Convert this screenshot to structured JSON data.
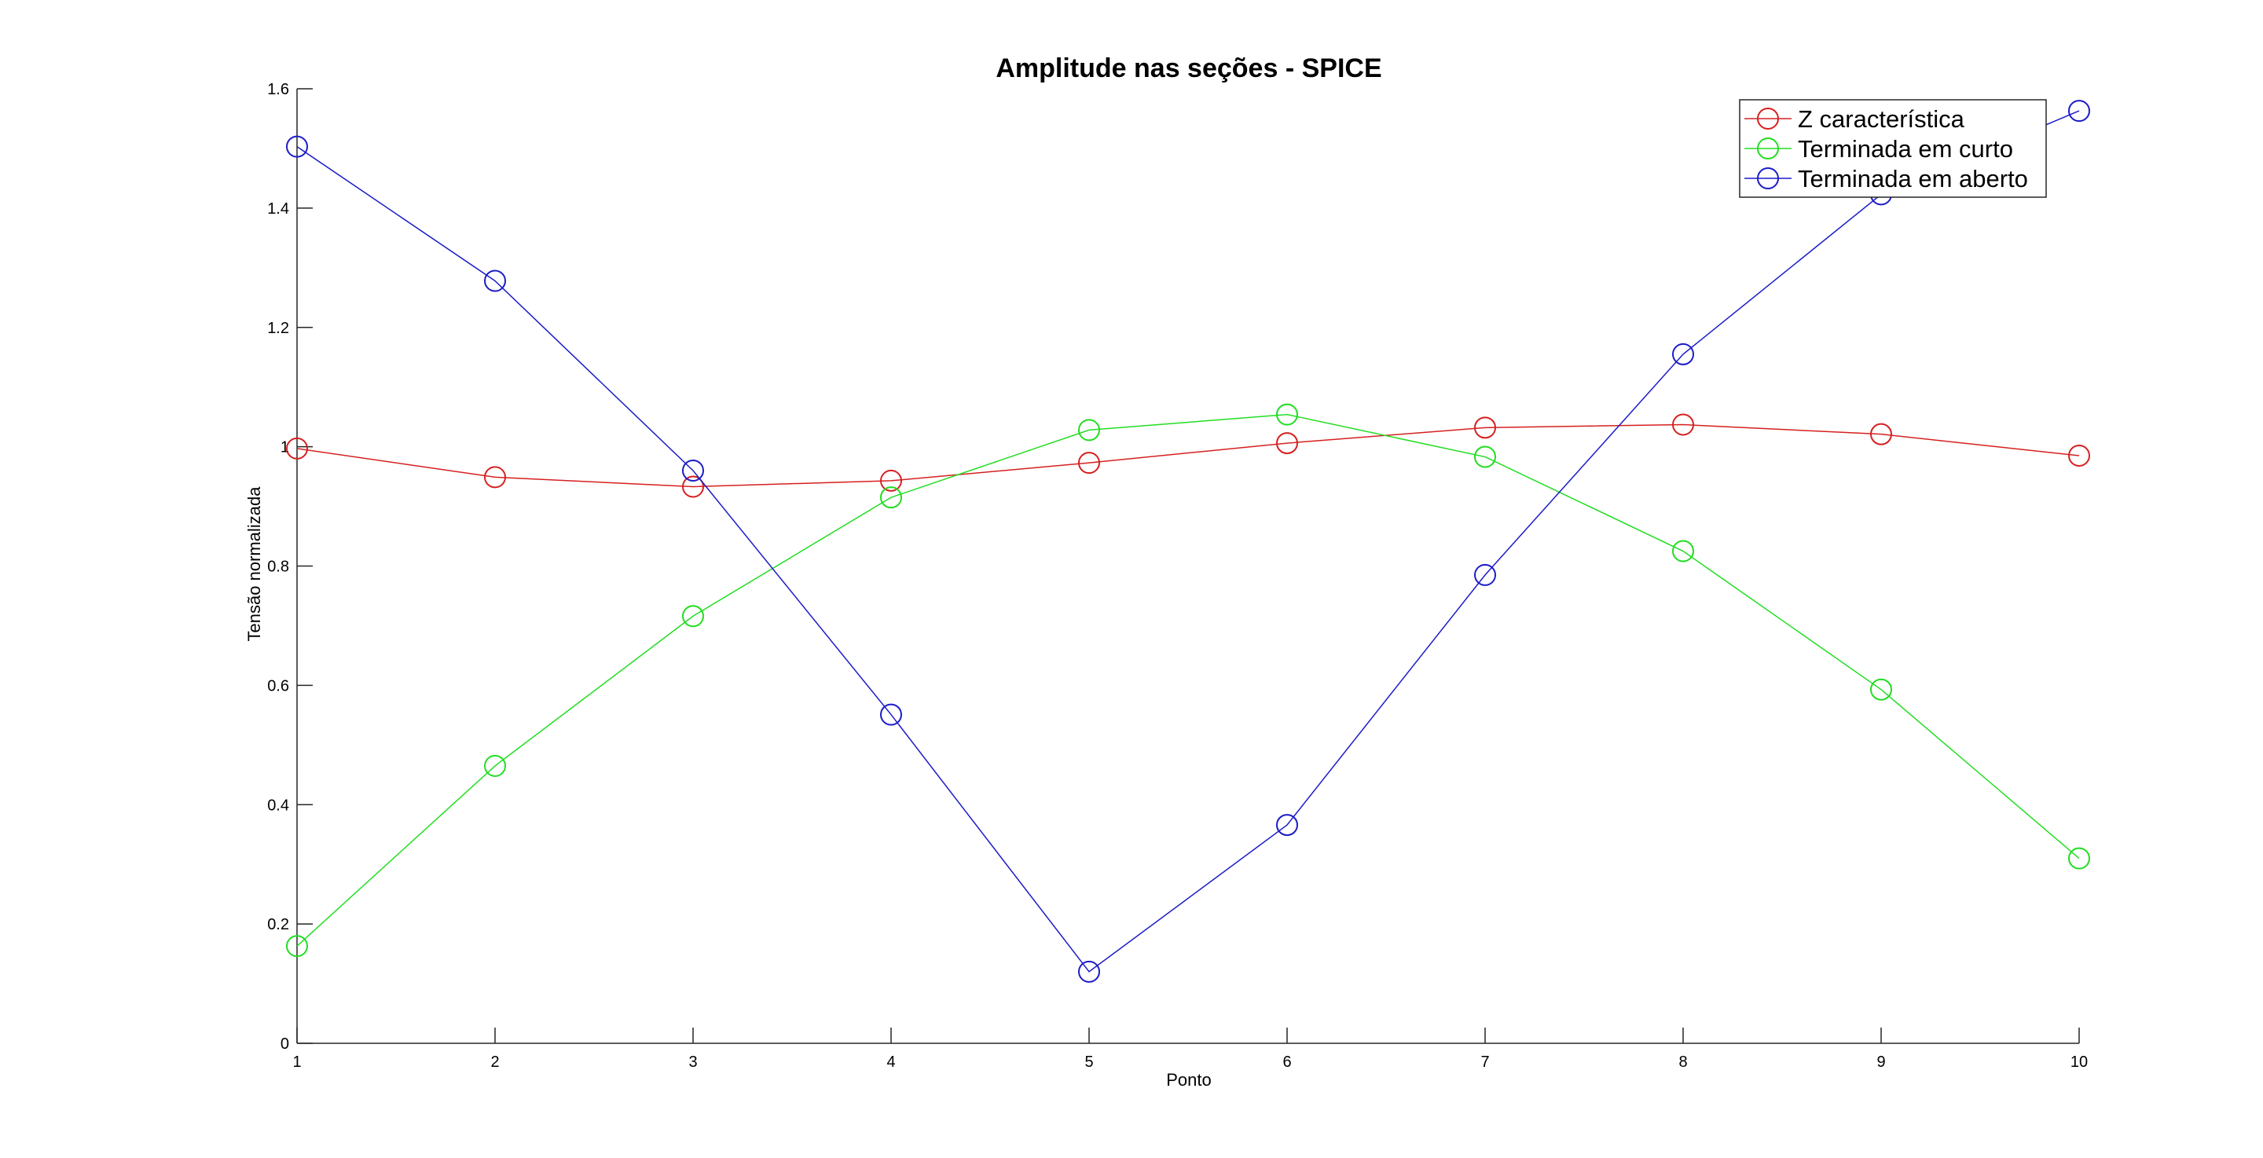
{
  "chart_data": {
    "type": "line",
    "title": "Amplitude nas seções - SPICE",
    "xlabel": "Ponto",
    "ylabel": "Tensão normalizada",
    "xlim": [
      1,
      10
    ],
    "ylim": [
      0,
      1.6
    ],
    "xticks": [
      "1",
      "2",
      "3",
      "4",
      "5",
      "6",
      "7",
      "8",
      "9",
      "10"
    ],
    "yticks": [
      "0",
      "0.2",
      "0.4",
      "0.6",
      "0.8",
      "1",
      "1.2",
      "1.4",
      "1.6"
    ],
    "x": [
      1,
      2,
      3,
      4,
      5,
      6,
      7,
      8,
      9,
      10
    ],
    "marker": "circle",
    "grid": false,
    "legend_position": "top-right",
    "series": [
      {
        "name": "Z característica",
        "color": "#d62020",
        "values": [
          0.997,
          0.949,
          0.933,
          0.943,
          0.973,
          1.006,
          1.032,
          1.037,
          1.021,
          0.985
        ]
      },
      {
        "name": "Terminada em curto",
        "color": "#22dd22",
        "values": [
          0.163,
          0.465,
          0.716,
          0.915,
          1.028,
          1.054,
          0.983,
          0.825,
          0.593,
          0.31
        ]
      },
      {
        "name": "Terminada em aberto",
        "color": "#1c1cc8",
        "values": [
          1.503,
          1.278,
          0.96,
          0.551,
          0.12,
          0.366,
          0.785,
          1.155,
          1.423,
          1.563
        ]
      }
    ]
  }
}
